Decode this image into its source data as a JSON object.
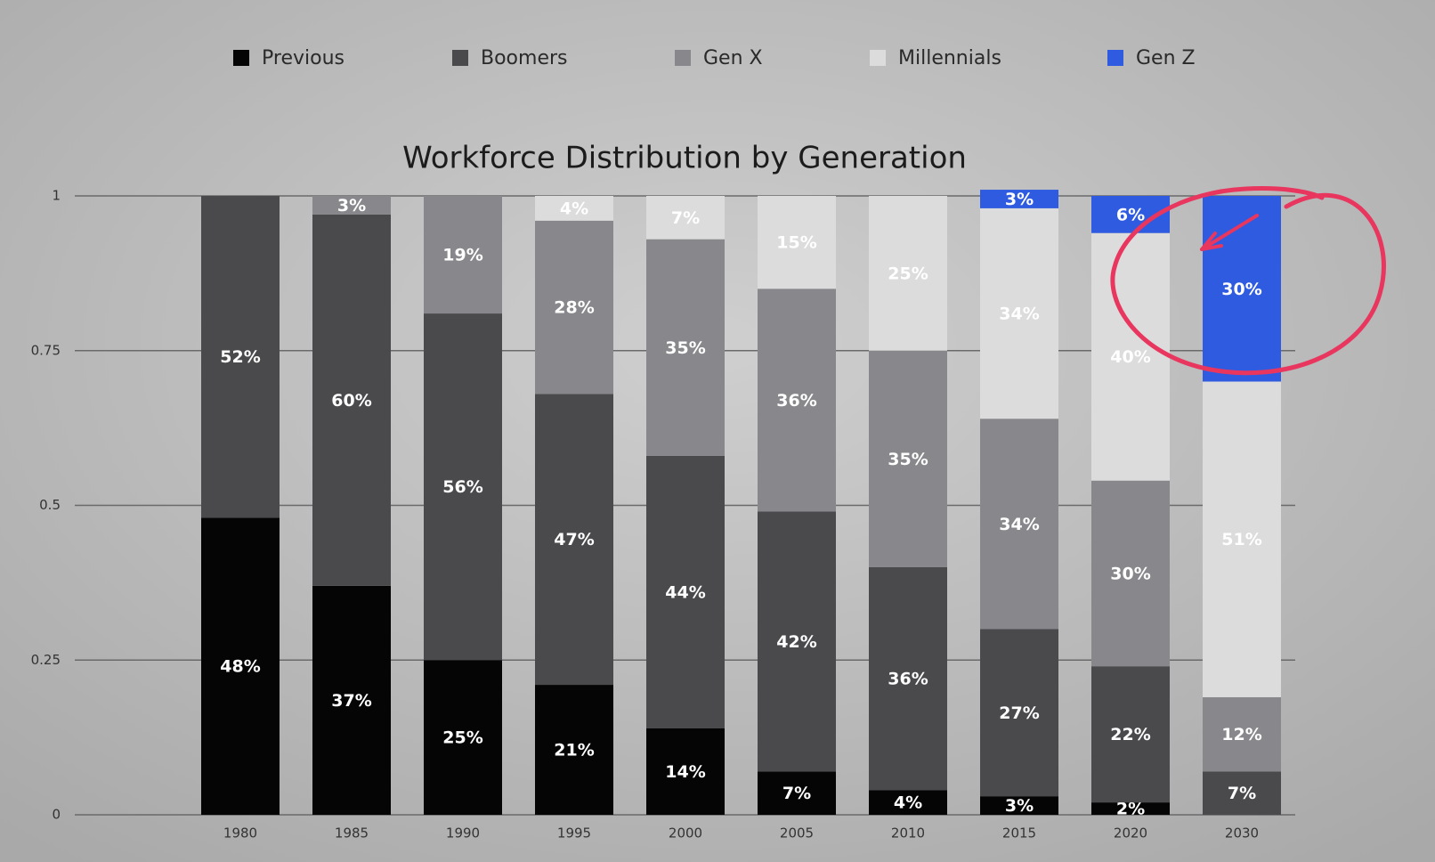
{
  "chart_data": {
    "type": "stacked-bar",
    "title": "Workforce Distribution by Generation",
    "categories": [
      "1980",
      "1985",
      "1990",
      "1995",
      "2000",
      "2005",
      "2010",
      "2015",
      "2020",
      "2030"
    ],
    "series": [
      {
        "name": "Previous",
        "color": "#050505",
        "values": [
          0.48,
          0.37,
          0.25,
          0.21,
          0.14,
          0.07,
          0.04,
          0.03,
          0.02,
          null
        ],
        "value_labels": [
          "48%",
          "37%",
          "25%",
          "21%",
          "14%",
          "7%",
          "4%",
          "3%",
          "2%",
          null
        ]
      },
      {
        "name": "Boomers",
        "color": "#4a494c",
        "values": [
          0.52,
          0.6,
          0.56,
          0.47,
          0.44,
          0.42,
          0.36,
          0.27,
          0.22,
          0.07
        ],
        "value_labels": [
          "52%",
          "60%",
          "56%",
          "47%",
          "44%",
          "42%",
          "36%",
          "27%",
          "22%",
          "7%"
        ]
      },
      {
        "name": "Gen X",
        "color": "#88878b",
        "values": [
          null,
          0.03,
          0.19,
          0.28,
          0.35,
          0.36,
          0.35,
          0.34,
          0.3,
          0.12
        ],
        "value_labels": [
          null,
          "3%",
          "19%",
          "28%",
          "35%",
          "36%",
          "35%",
          "34%",
          "30%",
          "12%"
        ]
      },
      {
        "name": "Millennials",
        "color": "#dcdcdc",
        "values": [
          null,
          null,
          null,
          0.04,
          0.07,
          0.15,
          0.25,
          0.34,
          0.4,
          0.51
        ],
        "value_labels": [
          null,
          null,
          null,
          "4%",
          "7%",
          "15%",
          "25%",
          "34%",
          "40%",
          "51%"
        ]
      },
      {
        "name": "Gen Z",
        "color": "#2f5be0",
        "values": [
          null,
          null,
          null,
          null,
          null,
          null,
          null,
          0.03,
          0.06,
          0.3
        ],
        "value_labels": [
          null,
          null,
          null,
          null,
          null,
          null,
          null,
          "3%",
          "6%",
          "30%"
        ]
      }
    ],
    "ylim": [
      0,
      1
    ],
    "yticks": [
      0,
      0.25,
      0.5,
      0.75,
      1
    ],
    "grid": true,
    "legend": "top"
  }
}
